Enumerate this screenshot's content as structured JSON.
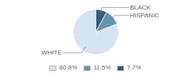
{
  "chart_data": {
    "type": "pie",
    "categories": [
      "WHITE",
      "HISPANIC",
      "BLACK"
    ],
    "values": [
      80.8,
      11.5,
      7.7
    ],
    "value_labels": [
      "80.8%",
      "11.5%",
      "7.7%"
    ],
    "colors": [
      "#d6e4f0",
      "#6394b0",
      "#2d5f7a"
    ],
    "legend": "bottom"
  }
}
